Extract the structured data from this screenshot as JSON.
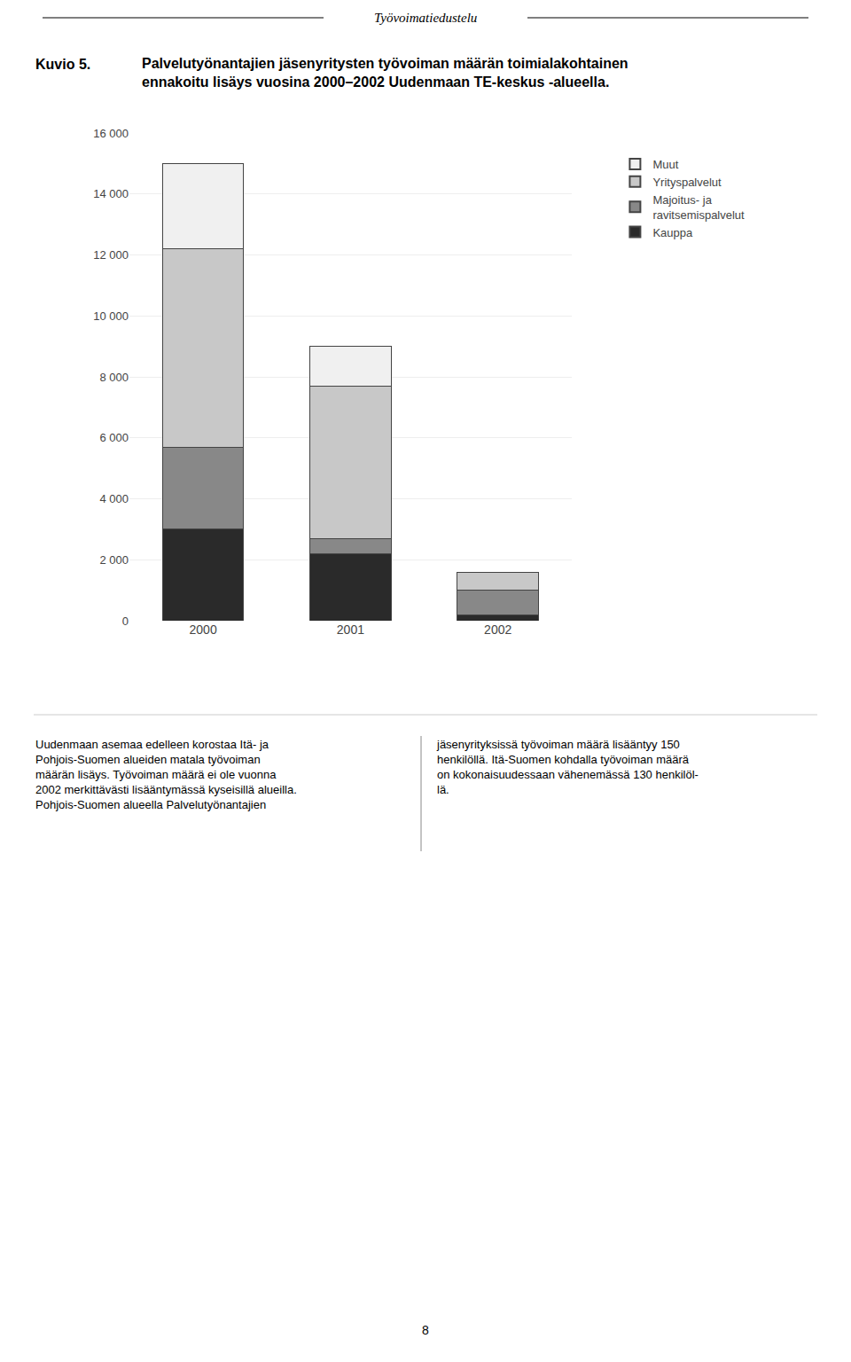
{
  "chart_data": {
    "type": "bar",
    "stacked": true,
    "title": "Palvelutyönantajien jäsenyritysten työvoiman määrän toimialakohtainen\nennakoitu lisäys vuosina 2000–2002 Uudenmaan TE-keskus -alueella.",
    "categories": [
      "2000",
      "2001",
      "2002"
    ],
    "series": [
      {
        "name": "Kauppa",
        "color": "#2a2a2a",
        "values": [
          3000,
          2200,
          200
        ]
      },
      {
        "name": "Majoitus- ja\nravitsemispalvelut",
        "color": "#888888",
        "values": [
          2700,
          500,
          800
        ]
      },
      {
        "name": "Yrityspalvelut",
        "color": "#c8c8c8",
        "values": [
          6500,
          5000,
          600
        ]
      },
      {
        "name": "Muut",
        "color": "#f0f0f0",
        "values": [
          2800,
          1300,
          0
        ]
      }
    ],
    "ylim": [
      0,
      16000
    ],
    "yticks": [
      0,
      {
        "value": 2000,
        "label": "2 000"
      },
      {
        "value": 4000,
        "label": "4 000"
      },
      {
        "value": 6000,
        "label": "6 000"
      },
      {
        "value": 8000,
        "label": "8 000"
      },
      {
        "value": 10000,
        "label": "10 000"
      },
      {
        "value": 12000,
        "label": "12 000"
      },
      {
        "value": 14000,
        "label": "14 000"
      },
      {
        "value": 16000,
        "label": "16 000"
      }
    ],
    "grid": true,
    "legend": "right",
    "annotations": [
      "Työvoimatiedustelu",
      "Kuvio 5.",
      "Uudenmaan asemaa edelleen korostaa Itä- ja\nPohjois-Suomen alueiden matala työvoiman\nmäärän lisäys. Työvoiman määrä ei ole vuonna\n2002 merkittävästi lisääntymässä kyseisillä alueilla.\nPohjois-Suomen alueella Palvelutyönantajien",
      "jäsenyrityksissä työvoiman määrä lisääntyy 150\nhenkilöllä. Itä-Suomen kohdalla työvoiman määrä\non kokonaisuudessaan vähenemässä 130 henkilöl-\nlä.",
      "8"
    ]
  }
}
